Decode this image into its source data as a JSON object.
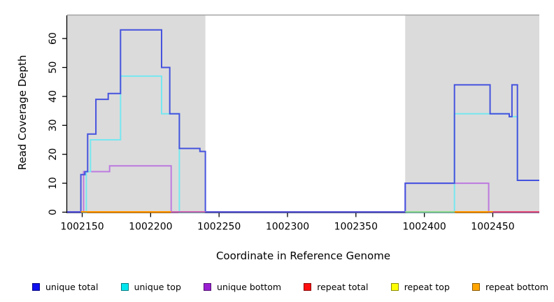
{
  "figure": {
    "background": "#FFFFFF",
    "shaded_region_color": "#DBDBDB",
    "shaded_top_border_color": "#A3A3A3",
    "axis_color": "#000000"
  },
  "chart_data": {
    "type": "line",
    "subtype": "step-after-coverage-plot",
    "title": "",
    "xlabel": "Coordinate in Reference Genome",
    "ylabel": "Read Coverage Depth",
    "xlim": [
      1002139,
      1002484
    ],
    "ylim": [
      0,
      68
    ],
    "xticks": [
      1002150,
      1002200,
      1002250,
      1002300,
      1002350,
      1002400,
      1002450
    ],
    "yticks": [
      0,
      10,
      20,
      30,
      40,
      50,
      60
    ],
    "grid": false,
    "legend_position": "bottom",
    "shaded_regions": [
      {
        "from": 1002139,
        "to": 1002240
      },
      {
        "from": 1002386,
        "to": 1002484
      }
    ],
    "series": [
      {
        "name": "repeat total",
        "legend_color": "#FF0F0F",
        "line_color": "#E0507A",
        "points": [
          [
            1002139,
            0
          ]
        ]
      },
      {
        "name": "repeat top",
        "legend_color": "#FFFF00",
        "line_color": "#F0E868",
        "points": [
          [
            1002139,
            0
          ]
        ]
      },
      {
        "name": "repeat bottom",
        "legend_color": "#FFA500",
        "line_color": "#FF9500",
        "points": [
          [
            1002139,
            0
          ]
        ]
      },
      {
        "name": "unique bottom",
        "legend_color": "#991FD1",
        "line_color": "#BC7ADF",
        "points": [
          [
            1002139,
            0
          ],
          [
            1002151,
            14
          ],
          [
            1002170,
            16
          ],
          [
            1002215,
            0
          ],
          [
            1002386,
            10
          ],
          [
            1002447,
            0
          ]
        ]
      },
      {
        "name": "unique top",
        "legend_color": "#00E6EF",
        "line_color": "#76E7EF",
        "points": [
          [
            1002139,
            0
          ],
          [
            1002153,
            14
          ],
          [
            1002156,
            25
          ],
          [
            1002178,
            47
          ],
          [
            1002208,
            34
          ],
          [
            1002221,
            0
          ],
          [
            1002422,
            34
          ],
          [
            1002462,
            33
          ],
          [
            1002468,
            11
          ]
        ]
      },
      {
        "name": "unique total",
        "legend_color": "#0F0FEF",
        "line_color": "#4553DE",
        "points": [
          [
            1002139,
            0
          ],
          [
            1002149,
            13
          ],
          [
            1002152,
            14
          ],
          [
            1002154,
            27
          ],
          [
            1002160,
            39
          ],
          [
            1002169,
            41
          ],
          [
            1002178,
            63
          ],
          [
            1002208,
            50
          ],
          [
            1002214,
            34
          ],
          [
            1002221,
            22
          ],
          [
            1002236,
            21
          ],
          [
            1002240,
            0
          ],
          [
            1002386,
            10
          ],
          [
            1002422,
            44
          ],
          [
            1002448,
            34
          ],
          [
            1002462,
            33
          ],
          [
            1002464,
            44
          ],
          [
            1002468,
            11
          ]
        ]
      }
    ],
    "legend_order": [
      "unique total",
      "unique top",
      "unique bottom",
      "repeat total",
      "repeat top",
      "repeat bottom"
    ],
    "baseline_segments": [
      {
        "from": 1002139,
        "to": 1002149,
        "color": "#5B55D8"
      },
      {
        "from": 1002149,
        "to": 1002215,
        "color": "#FF9500"
      },
      {
        "from": 1002215,
        "to": 1002240,
        "color": "#CC66B0"
      },
      {
        "from": 1002240,
        "to": 1002386,
        "color": "#615AD6"
      },
      {
        "from": 1002386,
        "to": 1002422,
        "color": "#8FD68F"
      },
      {
        "from": 1002422,
        "to": 1002450,
        "color": "#FF9500"
      },
      {
        "from": 1002450,
        "to": 1002484,
        "color": "#E0507A"
      }
    ]
  }
}
